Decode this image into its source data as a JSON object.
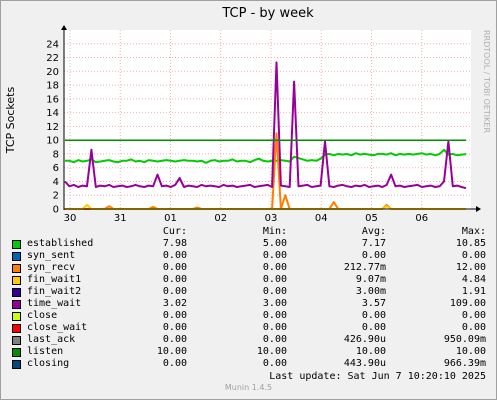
{
  "chart_data": {
    "type": "line",
    "title": "TCP - by week",
    "ylabel": "TCP Sockets",
    "ylim": [
      0,
      26
    ],
    "yticks": [
      "0",
      "2",
      "4",
      "6",
      "8",
      "10",
      "12",
      "14",
      "16",
      "18",
      "20",
      "22",
      "24"
    ],
    "xticks": [
      "30",
      "31",
      "01",
      "02",
      "03",
      "04",
      "05",
      "06"
    ],
    "grid": true,
    "side_label": "RRDTOOL / TOBI OETIKER",
    "series": [
      {
        "name": "established",
        "color": "#00cc00",
        "cur": "7.98",
        "min": "5.00",
        "avg": "7.17",
        "max": "10.85",
        "values": [
          7.0,
          7.0,
          6.8,
          7.1,
          6.9,
          7.0,
          7.2,
          6.8,
          6.9,
          7.0,
          7.1,
          6.9,
          6.8,
          7.0,
          7.0,
          7.2,
          6.9,
          7.0,
          6.8,
          7.1,
          7.0,
          6.9,
          7.0,
          7.1,
          7.0,
          6.9,
          7.0,
          7.1,
          7.0,
          7.0,
          6.9,
          7.0,
          6.7,
          7.0,
          7.1,
          6.9,
          7.0,
          7.0,
          7.2,
          6.9,
          7.0,
          7.0,
          6.8,
          7.1,
          7.3,
          7.0,
          6.9,
          7.0,
          7.0,
          7.1,
          7.0,
          6.9,
          7.6,
          7.4,
          7.2,
          7.0,
          7.1,
          7.0,
          7.3,
          7.9,
          8.0,
          7.8,
          8.0,
          7.9,
          8.0,
          7.8,
          8.1,
          7.9,
          8.0,
          7.9,
          7.8,
          8.0,
          8.0,
          7.9,
          8.1,
          7.8,
          8.0,
          7.9,
          8.0,
          7.9,
          8.0,
          8.1,
          7.9,
          8.0,
          7.8,
          8.0,
          8.6,
          7.9,
          8.0,
          7.8,
          7.9,
          7.98
        ]
      },
      {
        "name": "syn_sent",
        "color": "#0066b3",
        "cur": "0.00",
        "min": "0.00",
        "avg": "0.00",
        "max": "0.00"
      },
      {
        "name": "syn_recv",
        "color": "#ff8000",
        "cur": "0.00",
        "min": "0.00",
        "avg": "212.77m",
        "max": "12.00",
        "values": [
          0,
          0,
          0,
          0,
          0,
          0,
          0,
          0,
          0,
          0,
          0.4,
          0,
          0,
          0,
          0,
          0,
          0,
          0,
          0,
          0,
          0.3,
          0,
          0,
          0,
          0,
          0,
          0,
          0,
          0,
          0,
          0.2,
          0,
          0,
          0,
          0,
          0,
          0,
          0,
          0,
          0,
          0,
          0,
          0,
          0,
          0,
          0,
          0,
          0,
          11.0,
          0,
          2.0,
          0,
          0,
          0,
          0,
          0,
          0,
          0,
          0,
          0,
          0,
          1.0,
          0,
          0,
          0,
          0,
          0,
          0,
          0,
          0,
          0,
          0,
          0,
          0.6,
          0,
          0,
          0,
          0,
          0,
          0,
          0,
          0,
          0,
          0,
          0,
          0,
          0,
          0,
          0,
          0,
          0,
          0
        ]
      },
      {
        "name": "fin_wait1",
        "color": "#ffcc00",
        "cur": "0.00",
        "min": "0.00",
        "avg": "9.07m",
        "max": "4.84",
        "values": [
          0,
          0,
          0,
          0,
          0,
          0.6,
          0,
          0,
          0,
          0,
          0,
          0,
          0,
          0,
          0,
          0,
          0,
          0,
          0,
          0,
          0,
          0,
          0,
          0,
          0,
          0,
          0,
          0,
          0,
          0,
          0,
          0,
          0,
          0,
          0,
          0,
          0,
          0,
          0,
          0,
          0,
          0,
          0,
          0,
          0,
          0,
          0,
          0,
          0,
          0,
          0,
          0,
          0,
          0,
          0,
          0,
          0,
          0,
          0,
          0,
          0,
          0,
          0,
          0,
          0,
          0,
          0,
          0,
          0,
          0,
          0,
          0,
          0,
          0.4,
          0,
          0,
          0,
          0,
          0,
          0,
          0,
          0,
          0,
          0,
          0,
          0,
          0,
          0,
          0,
          0,
          0,
          0
        ]
      },
      {
        "name": "fin_wait2",
        "color": "#330099",
        "cur": "0.00",
        "min": "0.00",
        "avg": "3.00m",
        "max": "1.91"
      },
      {
        "name": "time_wait",
        "color": "#990099",
        "cur": "3.02",
        "min": "3.00",
        "avg": "3.57",
        "max": "109.00",
        "values": [
          4.0,
          3.3,
          3.5,
          3.2,
          3.4,
          3.3,
          8.6,
          3.2,
          3.4,
          3.3,
          3.5,
          3.2,
          3.3,
          3.4,
          3.2,
          3.3,
          3.5,
          3.3,
          3.2,
          3.4,
          3.3,
          5.0,
          3.3,
          3.4,
          3.2,
          3.5,
          4.5,
          3.2,
          3.4,
          3.3,
          3.2,
          3.5,
          3.3,
          3.4,
          3.3,
          3.2,
          3.5,
          3.3,
          3.4,
          3.2,
          3.3,
          3.4,
          3.5,
          3.2,
          3.3,
          3.4,
          3.5,
          3.2,
          21.3,
          3.4,
          3.3,
          3.2,
          18.5,
          3.3,
          3.4,
          3.5,
          3.2,
          3.3,
          3.4,
          9.8,
          3.3,
          3.2,
          3.4,
          3.5,
          3.3,
          3.2,
          3.4,
          3.3,
          3.5,
          3.2,
          3.3,
          3.4,
          3.2,
          3.5,
          5.0,
          3.3,
          3.4,
          3.2,
          3.3,
          3.4,
          3.5,
          3.2,
          3.3,
          3.4,
          3.2,
          3.3,
          4.0,
          9.8,
          3.3,
          3.4,
          3.2,
          3.02
        ]
      },
      {
        "name": "close",
        "color": "#ccff00",
        "cur": "0.00",
        "min": "0.00",
        "avg": "0.00",
        "max": "0.00"
      },
      {
        "name": "close_wait",
        "color": "#ff0000",
        "cur": "0.00",
        "min": "0.00",
        "avg": "0.00",
        "max": "0.00"
      },
      {
        "name": "last_ack",
        "color": "#808080",
        "cur": "0.00",
        "min": "0.00",
        "avg": "426.90u",
        "max": "950.09m"
      },
      {
        "name": "listen",
        "color": "#008f00",
        "cur": "10.00",
        "min": "10.00",
        "avg": "10.00",
        "max": "10.00",
        "values": [
          10,
          10,
          10,
          10,
          10,
          10,
          10,
          10,
          10,
          10,
          10,
          10,
          10,
          10,
          10,
          10,
          10,
          10,
          10,
          10,
          10,
          10,
          10,
          10,
          10,
          10,
          10,
          10,
          10,
          10,
          10,
          10,
          10,
          10,
          10,
          10,
          10,
          10,
          10,
          10,
          10,
          10,
          10,
          10,
          10,
          10,
          10,
          10,
          10,
          10,
          10,
          10,
          10,
          10,
          10,
          10,
          10,
          10,
          10,
          10,
          10,
          10,
          10,
          10,
          10,
          10,
          10,
          10,
          10,
          10,
          10,
          10,
          10,
          10,
          10,
          10,
          10,
          10,
          10,
          10,
          10,
          10,
          10,
          10,
          10,
          10,
          10,
          10,
          10,
          10,
          10,
          10
        ]
      },
      {
        "name": "closing",
        "color": "#00487d",
        "cur": "0.00",
        "min": "0.00",
        "avg": "443.90u",
        "max": "966.39m"
      }
    ]
  },
  "legend_header": {
    "cur": "Cur:",
    "min": "Min:",
    "avg": "Avg:",
    "max": "Max:"
  },
  "last_update": "Last update: Sat Jun  7 10:20:10 2025",
  "version": "Munin 1.4.5"
}
